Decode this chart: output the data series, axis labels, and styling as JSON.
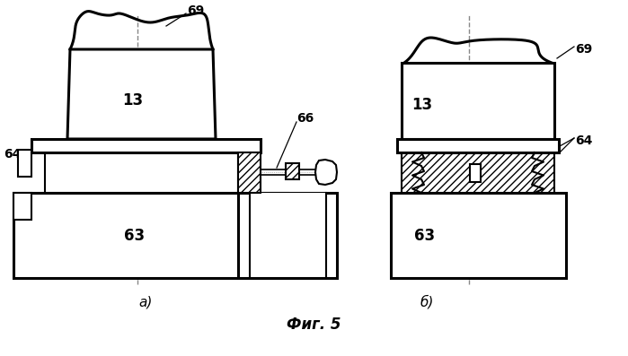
{
  "bg_color": "#ffffff",
  "lc": "#000000",
  "label_a": "а)",
  "label_b": "б)",
  "fig_label": "Фиг. 5",
  "n63a": "63",
  "n13a": "13",
  "n64a": "64",
  "n69a": "69",
  "n66": "66",
  "n63b": "63",
  "n13b": "13",
  "n64b": "64",
  "n69b": "69"
}
